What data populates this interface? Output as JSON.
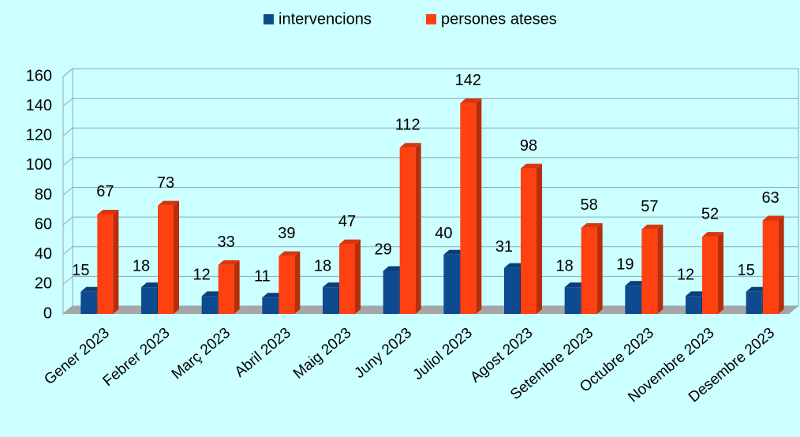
{
  "chart_data": {
    "type": "bar",
    "categories": [
      "Gener 2023",
      "Febrer 2023",
      "Març 2023",
      "Abril 2023",
      "Maig 2023",
      "Juny 2023",
      "Juliol 2023",
      "Agost 2023",
      "Setembre 2023",
      "Octubre 2023",
      "Novembre 2023",
      "Desembre 2023"
    ],
    "series": [
      {
        "name": "intervencions",
        "color": "#0d4a8f",
        "values": [
          15,
          18,
          12,
          11,
          18,
          29,
          40,
          31,
          18,
          19,
          12,
          15
        ]
      },
      {
        "name": "persones ateses",
        "color": "#ff4010",
        "values": [
          67,
          73,
          33,
          39,
          47,
          112,
          142,
          98,
          58,
          57,
          52,
          63
        ]
      }
    ],
    "ylim": [
      0,
      160
    ],
    "yticks": [
      0,
      20,
      40,
      60,
      80,
      100,
      120,
      140,
      160
    ],
    "grid": true,
    "legend": "top"
  }
}
